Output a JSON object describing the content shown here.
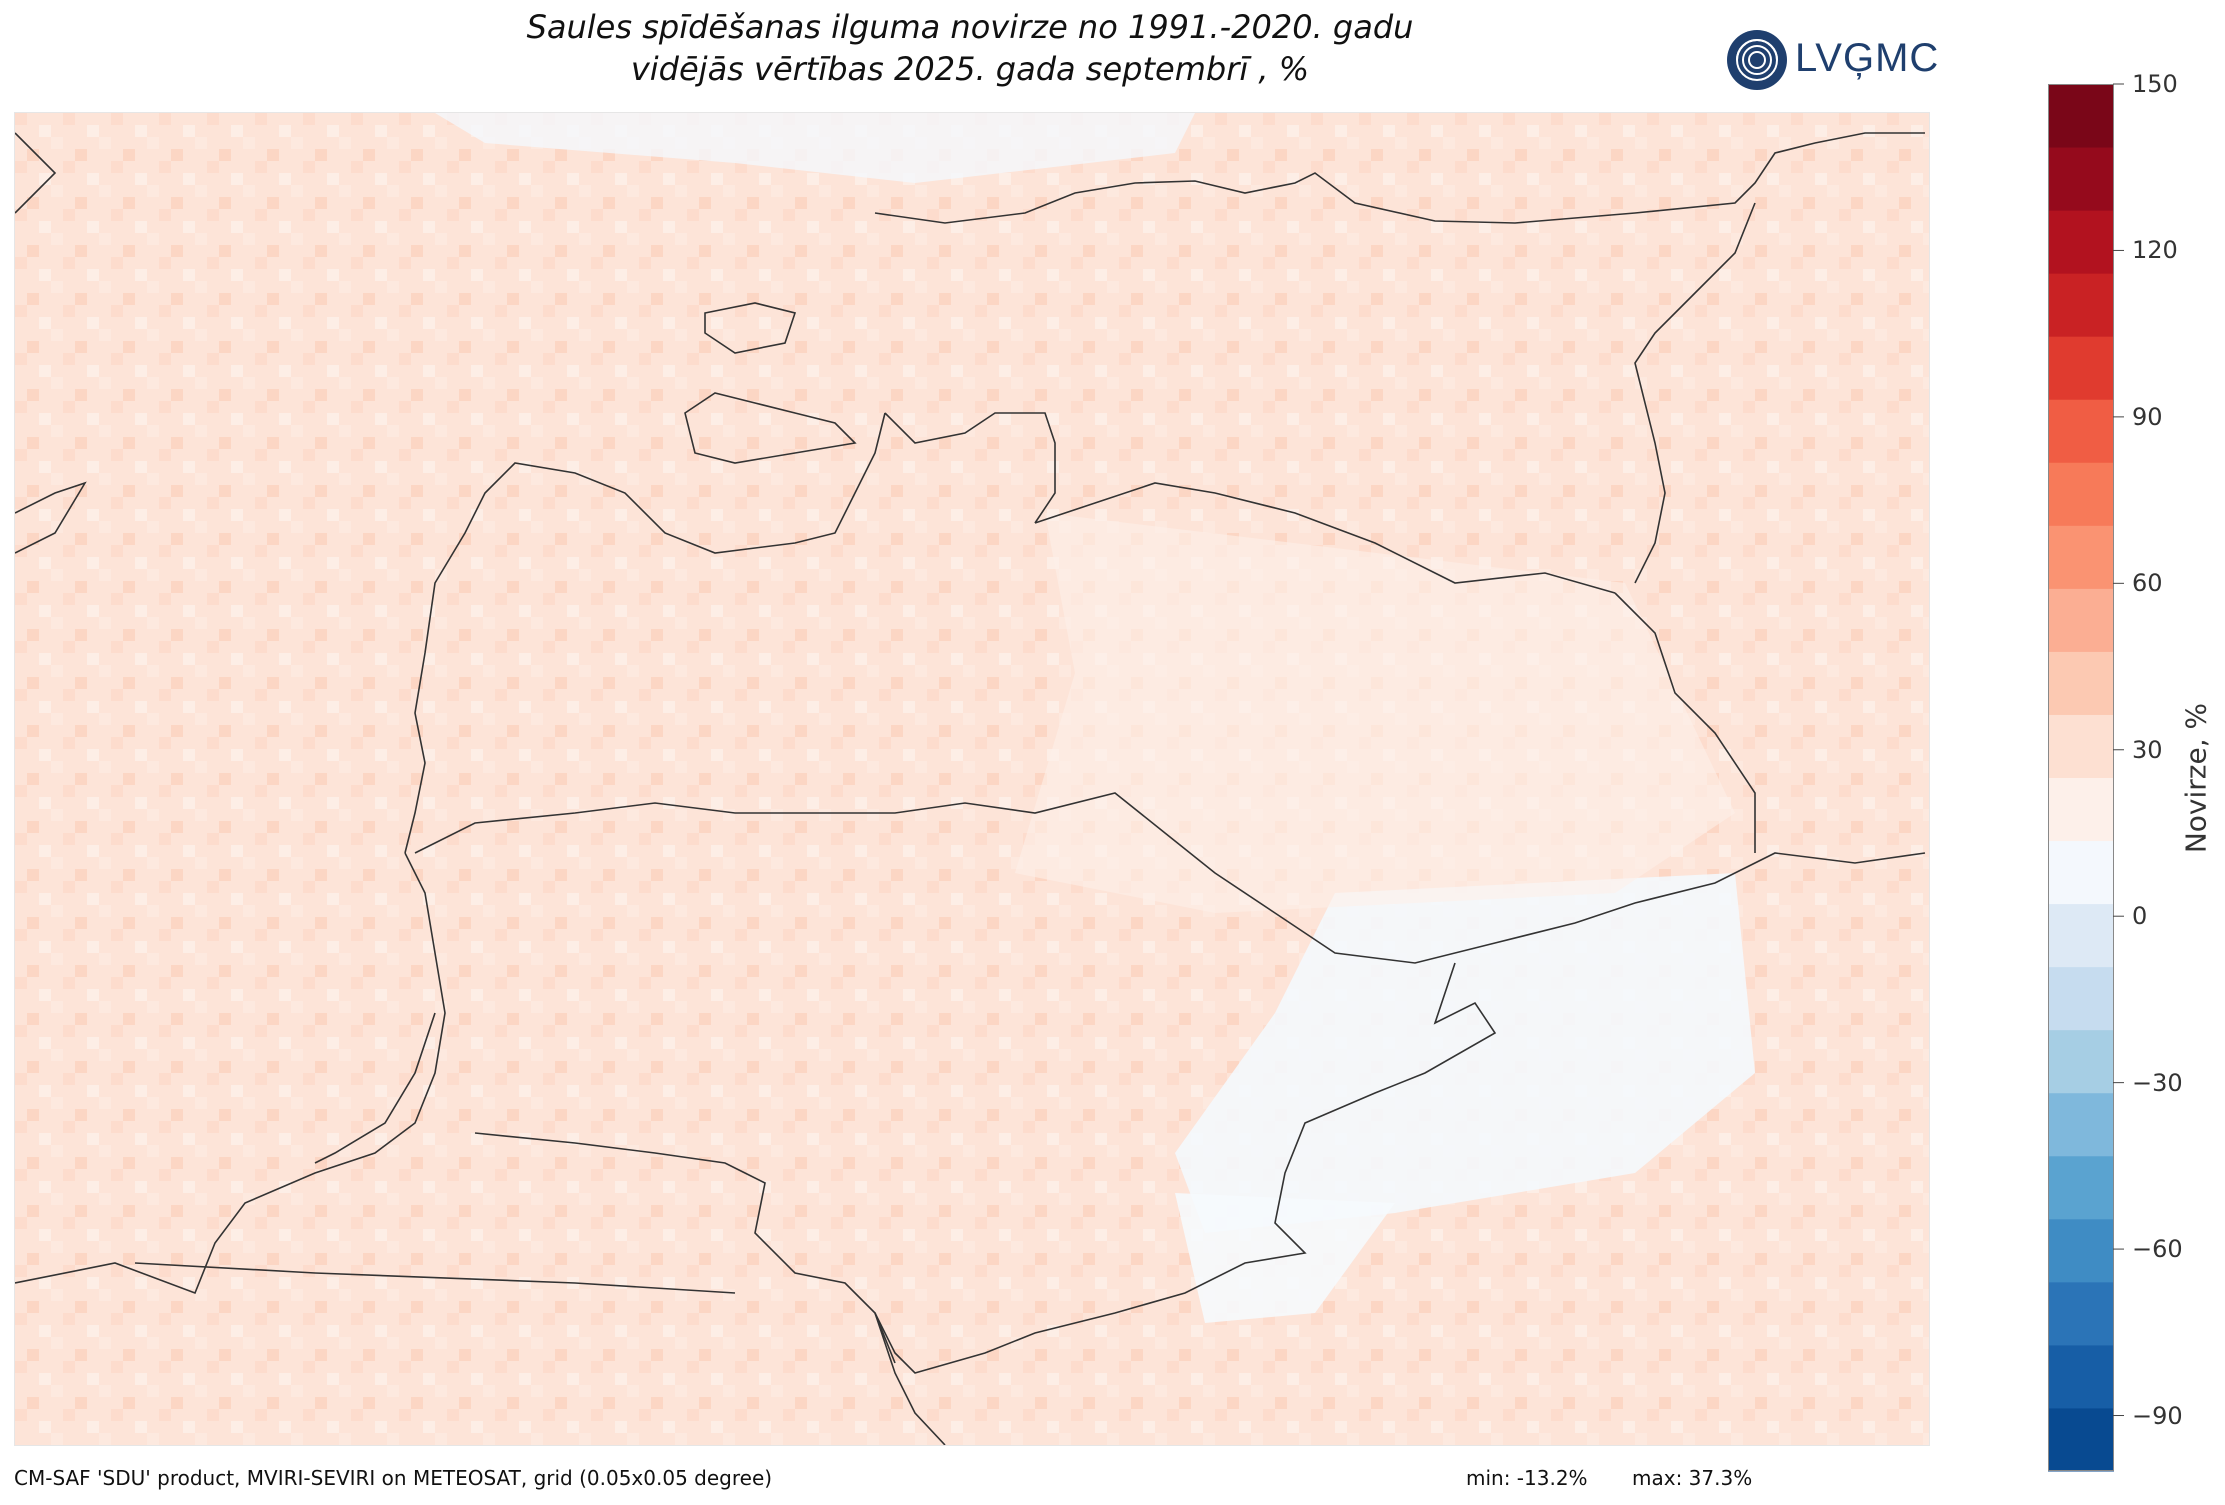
{
  "title": {
    "line1": "Saules spīdēšanas ilguma novirze no 1991.-2020. gadu",
    "line2": "vidējās vērtības 2025. gada septembrī , %"
  },
  "logo": {
    "text": "LVĢMC",
    "icon": "lvgmc-logo-icon"
  },
  "colorbar": {
    "label": "Novirze, %",
    "min": -100,
    "max": 150,
    "ticks": [
      "150",
      "120",
      "90",
      "60",
      "30",
      "0",
      "−30",
      "−60",
      "−90"
    ],
    "tick_values": [
      150,
      120,
      90,
      60,
      30,
      0,
      -30,
      -60,
      -90
    ],
    "colors_bottom_to_top": [
      "#084a91",
      "#175ea6",
      "#2b74b7",
      "#3f8cc4",
      "#5aa3d0",
      "#7fb8dc",
      "#a6cee4",
      "#c6dcef",
      "#dde9f5",
      "#f4f8fd",
      "#fdf0ea",
      "#fde0d2",
      "#fcc9b2",
      "#fbae93",
      "#fa9372",
      "#f77a59",
      "#f05d44",
      "#e03b2f",
      "#c92224",
      "#b2121f",
      "#950a1c",
      "#7a0618"
    ]
  },
  "map": {
    "type": "raster-choropleth",
    "region": "Baltic states (Estonia, Latvia, Lithuania) and surroundings",
    "land_shade": "#fde6dc",
    "sea_shade": "#fde9e0",
    "negative_shade": "#f4f8fd"
  },
  "footer": {
    "source": "CM-SAF 'SDU' product, MVIRI-SEVIRI on METEOSAT, grid (0.05x0.05 degree)",
    "min": "min: -13.2%",
    "max": "max: 37.3%"
  }
}
